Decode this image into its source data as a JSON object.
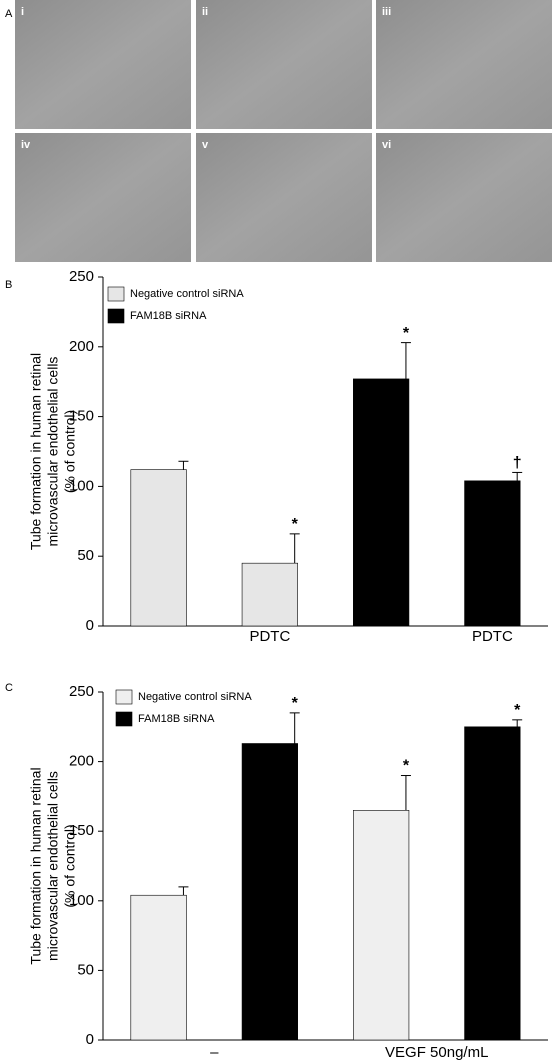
{
  "panel_a": {
    "label": "A",
    "images": [
      "i",
      "ii",
      "iii",
      "iv",
      "v",
      "vi"
    ]
  },
  "chart_data": [
    {
      "type": "bar",
      "panel": "B",
      "ylabel": [
        "Tube formation in human retinal",
        "microvascular endothelial cells",
        "(% of control)"
      ],
      "categories": [
        null,
        "PDTC",
        null,
        "PDTC"
      ],
      "series": [
        {
          "name": "Negative control  siRNA",
          "color": "#e6e6e6",
          "values": [
            112,
            45,
            null,
            null
          ],
          "errors": [
            6,
            21,
            null,
            null
          ],
          "markers": [
            null,
            "*",
            null,
            null
          ]
        },
        {
          "name": "FAM18B siRNA",
          "color": "#000000",
          "values": [
            null,
            null,
            177,
            104
          ],
          "errors": [
            null,
            null,
            26,
            6
          ],
          "markers": [
            null,
            null,
            "*",
            "†"
          ]
        }
      ],
      "ylim": [
        0,
        250
      ],
      "yticks": [
        0,
        50,
        100,
        150,
        200,
        250
      ]
    },
    {
      "type": "bar",
      "panel": "C",
      "ylabel": [
        "Tube formation in human retinal",
        "microvascular endothelial cells",
        "(% of control)"
      ],
      "categories": [
        "–",
        "VEGF 50ng/mL"
      ],
      "series": [
        {
          "name": "Negative control  siRNA",
          "color": "#efefef",
          "values": [
            104,
            165
          ],
          "errors": [
            6,
            25
          ],
          "markers": [
            null,
            "*"
          ]
        },
        {
          "name": "FAM18B siRNA",
          "color": "#000000",
          "values": [
            213,
            225
          ],
          "errors": [
            22,
            5
          ],
          "markers": [
            "*",
            "*"
          ]
        }
      ],
      "ylim": [
        0,
        250
      ],
      "yticks": [
        0,
        50,
        100,
        150,
        200,
        250
      ]
    }
  ]
}
